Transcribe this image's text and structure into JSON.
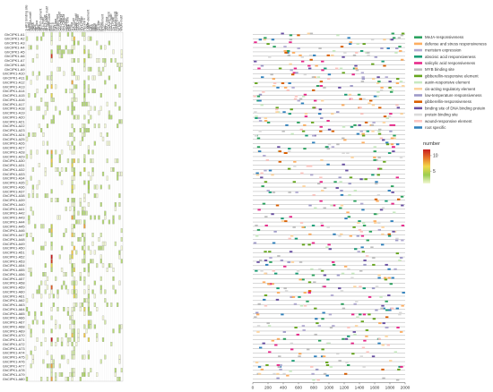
{
  "chart_data": {
    "type": "heatmap",
    "genes": [
      "GhCIPK1-A1",
      "GhCIPK1-A2",
      "GhCIPK1-A3",
      "GhCIPK1-A4",
      "GhCIPK1-A5",
      "GhCIPK1-A6",
      "GhCIPK1-A7",
      "GhCIPK1-A8",
      "GhCIPK1-A9",
      "GhCIPK1-A10",
      "GhCIPK1-A11",
      "GhCIPK1-A12",
      "GhCIPK1-A13",
      "GhCIPK1-A14",
      "GhCIPK1-A15",
      "GhCIPK1-A16",
      "GhCIPK1-A17",
      "GhCIPK1-A18",
      "GhCIPK1-A19",
      "GhCIPK1-A20",
      "GhCIPK1-A21",
      "GhCIPK1-A22",
      "GhCIPK1-A23",
      "GhCIPK1-A24",
      "GhCIPK1-A25",
      "GhCIPK1-A26",
      "GhCIPK1-A27",
      "GhCIPK1-A28",
      "GhCIPK1-A29",
      "GhCIPK1-A30",
      "GhCIPK1-A31",
      "GhCIPK1-A32",
      "GhCIPK1-A33",
      "GhCIPK1-A34",
      "GhCIPK1-A35",
      "GhCIPK1-A36",
      "GhCIPK1-A37",
      "GhCIPK1-A38",
      "GhCIPK1-A39",
      "GhCIPK1-A40",
      "GhCIPK1-A41",
      "GhCIPK1-A42",
      "GhCIPK1-A43",
      "GhCIPK1-A44",
      "GhCIPK1-A45",
      "GhCIPK1-A46",
      "GhCIPK1-A47",
      "GhCIPK1-A48",
      "GhCIPK1-A49",
      "GhCIPK1-A50",
      "GhCIPK1-A51",
      "GhCIPK1-A52",
      "GhCIPK1-A53",
      "GhCIPK1-A54",
      "GhCIPK1-A55",
      "GhCIPK1-A56",
      "GhCIPK1-A57",
      "GhCIPK1-A58",
      "GhCIPK1-A59",
      "GhCIPK1-A60",
      "GhCIPK1-A61",
      "GhCIPK1-A62",
      "GhCIPK1-A63",
      "GhCIPK1-A64",
      "GhCIPK1-A65",
      "GhCIPK1-A66",
      "GhCIPK1-A67",
      "GhCIPK1-A68",
      "GhCIPK1-A69",
      "GhCIPK1-A70",
      "GhCIPK1-A71",
      "GhCIPK1-A72",
      "GhCIPK1-A73",
      "GhCIPK1-A74",
      "GhCIPK1-A75",
      "GhCIPK1-A76",
      "GhCIPK1-A77",
      "GhCIPK1-A78",
      "GhCIPK1-A79",
      "GhCIPK1-A80"
    ],
    "elements": [
      "3-AF1 binding site",
      "A-box",
      "AAGAA-motif",
      "ABRE",
      "ACE",
      "AE-box",
      "ARE",
      "AT-rich element",
      "AT1-motif",
      "ATCT-motif",
      "ATGCAAAT motif",
      "AuxRR-core",
      "Box 4",
      "Box II",
      "CAT-box",
      "CCAAT-box",
      "CGTCA-motif",
      "chs-CMA1a",
      "chs-CMA2a",
      "circadian",
      "DRE core",
      "ERE",
      "G-box",
      "GA-motif",
      "GARE-motif",
      "GATA-motif",
      "GC-motif",
      "GT1-motif",
      "HD-Zip 1",
      "I-box",
      "LAMP-element",
      "LTR",
      "MBS",
      "MBSI",
      "MRE",
      "O2-site",
      "P-box",
      "RY-element",
      "Sp1",
      "TATC-box",
      "TCA-element",
      "TCCC-motif",
      "TCT-motif",
      "TGA-element",
      "TGACG-motif",
      "W box",
      "WUN-motif"
    ],
    "color_scale": {
      "label": "number",
      "ticks": [
        5,
        10
      ],
      "colors": [
        "#f2f7d4",
        "#9bcd4f",
        "#f2d84a",
        "#e7762a",
        "#c81e1e"
      ]
    },
    "legend": [
      {
        "label": "MeJA-responsiveness",
        "color": "#2ca25f"
      },
      {
        "label": "defense and stress responsiveness",
        "color": "#fdae61"
      },
      {
        "label": "meristem expression",
        "color": "#b2abd2"
      },
      {
        "label": "abscisic acid responsiveness",
        "color": "#1b9e77"
      },
      {
        "label": "salicylic acid responsiveness",
        "color": "#e7298a"
      },
      {
        "label": "MYB binding site",
        "color": "#bdbdbd"
      },
      {
        "label": "gibberellin-responsive element",
        "color": "#66a61e"
      },
      {
        "label": "auxin-responsive element",
        "color": "#c7e9c0"
      },
      {
        "label": "cis-acting regulatory element",
        "color": "#fdd49e"
      },
      {
        "label": "low-temperature responsiveness",
        "color": "#9e9ac8"
      },
      {
        "label": "gibberellin-responsiveness",
        "color": "#d95f02"
      },
      {
        "label": "binding site of DNA binding protein",
        "color": "#6a51a3"
      },
      {
        "label": "protein binding site",
        "color": "#d9d9d9"
      },
      {
        "label": "wound-responsive element",
        "color": "#fcc5c0"
      },
      {
        "label": "root specific",
        "color": "#3182bd"
      }
    ],
    "x_axis": {
      "ticks": [
        0,
        200,
        400,
        600,
        800,
        1000,
        1200,
        1400,
        1600,
        1800,
        2000
      ]
    }
  }
}
